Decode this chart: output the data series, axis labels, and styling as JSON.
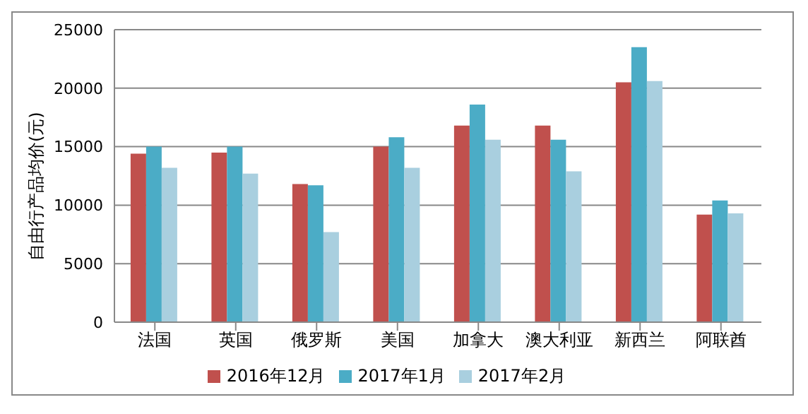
{
  "chart_data": {
    "type": "bar",
    "ylabel": "自由行产品均价(元)",
    "categories": [
      "法国",
      "英国",
      "俄罗斯",
      "美国",
      "加拿大",
      "澳大利亚",
      "新西兰",
      "阿联酋"
    ],
    "series": [
      {
        "name": "2016年12月",
        "color": "#c0504d",
        "values": [
          14400,
          14500,
          11800,
          15000,
          16800,
          16800,
          20500,
          9200
        ]
      },
      {
        "name": "2017年1月",
        "color": "#4bacc6",
        "values": [
          15000,
          15000,
          11700,
          15800,
          18600,
          15600,
          23500,
          10400
        ]
      },
      {
        "name": "2017年2月",
        "color": "#a9cfdf",
        "values": [
          13200,
          12700,
          7700,
          13200,
          15600,
          12900,
          20600,
          9300
        ]
      }
    ],
    "ylim": [
      0,
      25000
    ],
    "yticks": [
      0,
      5000,
      10000,
      15000,
      20000,
      25000
    ],
    "grid": "y",
    "legend": "bottom"
  }
}
